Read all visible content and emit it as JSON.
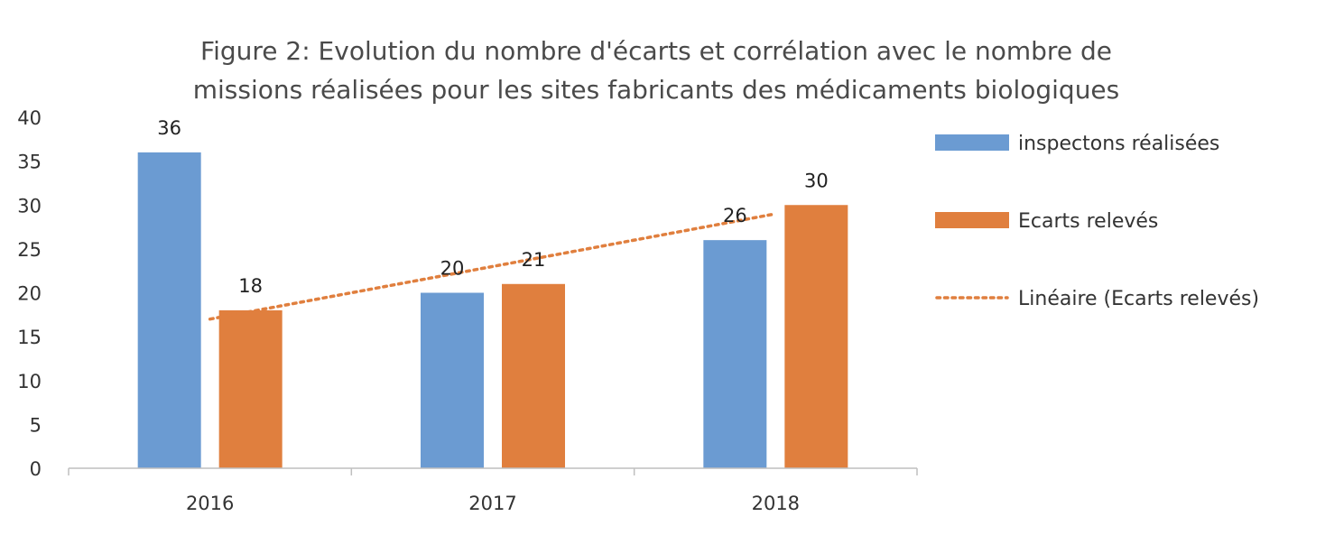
{
  "chart_data": {
    "type": "bar",
    "title": "Figure 2: Evolution du nombre d'écarts et corrélation avec le nombre de missions réalisées pour les sites fabricants des médicaments biologiques",
    "title_lines": [
      "Figure 2: Evolution du nombre d'écarts et corrélation avec le nombre de",
      "missions réalisées pour les sites fabricants des médicaments biologiques"
    ],
    "categories": [
      "2016",
      "2017",
      "2018"
    ],
    "series": [
      {
        "name": "inspectons réalisées",
        "values": [
          36,
          20,
          26
        ],
        "color": "#6b9bd2"
      },
      {
        "name": "Ecarts relevés",
        "values": [
          18,
          21,
          30
        ],
        "color": "#e07f3e"
      }
    ],
    "trendline": {
      "name": "Linéaire (Ecarts relevés)",
      "of_series": "Ecarts relevés",
      "style": "dotted",
      "color": "#e07f3e"
    },
    "ylim": [
      0,
      40
    ],
    "yticks": [
      0,
      5,
      10,
      15,
      20,
      25,
      30,
      35,
      40
    ],
    "xlabel": "",
    "ylabel": "",
    "grid": false,
    "legend_position": "right",
    "data_labels": true
  }
}
